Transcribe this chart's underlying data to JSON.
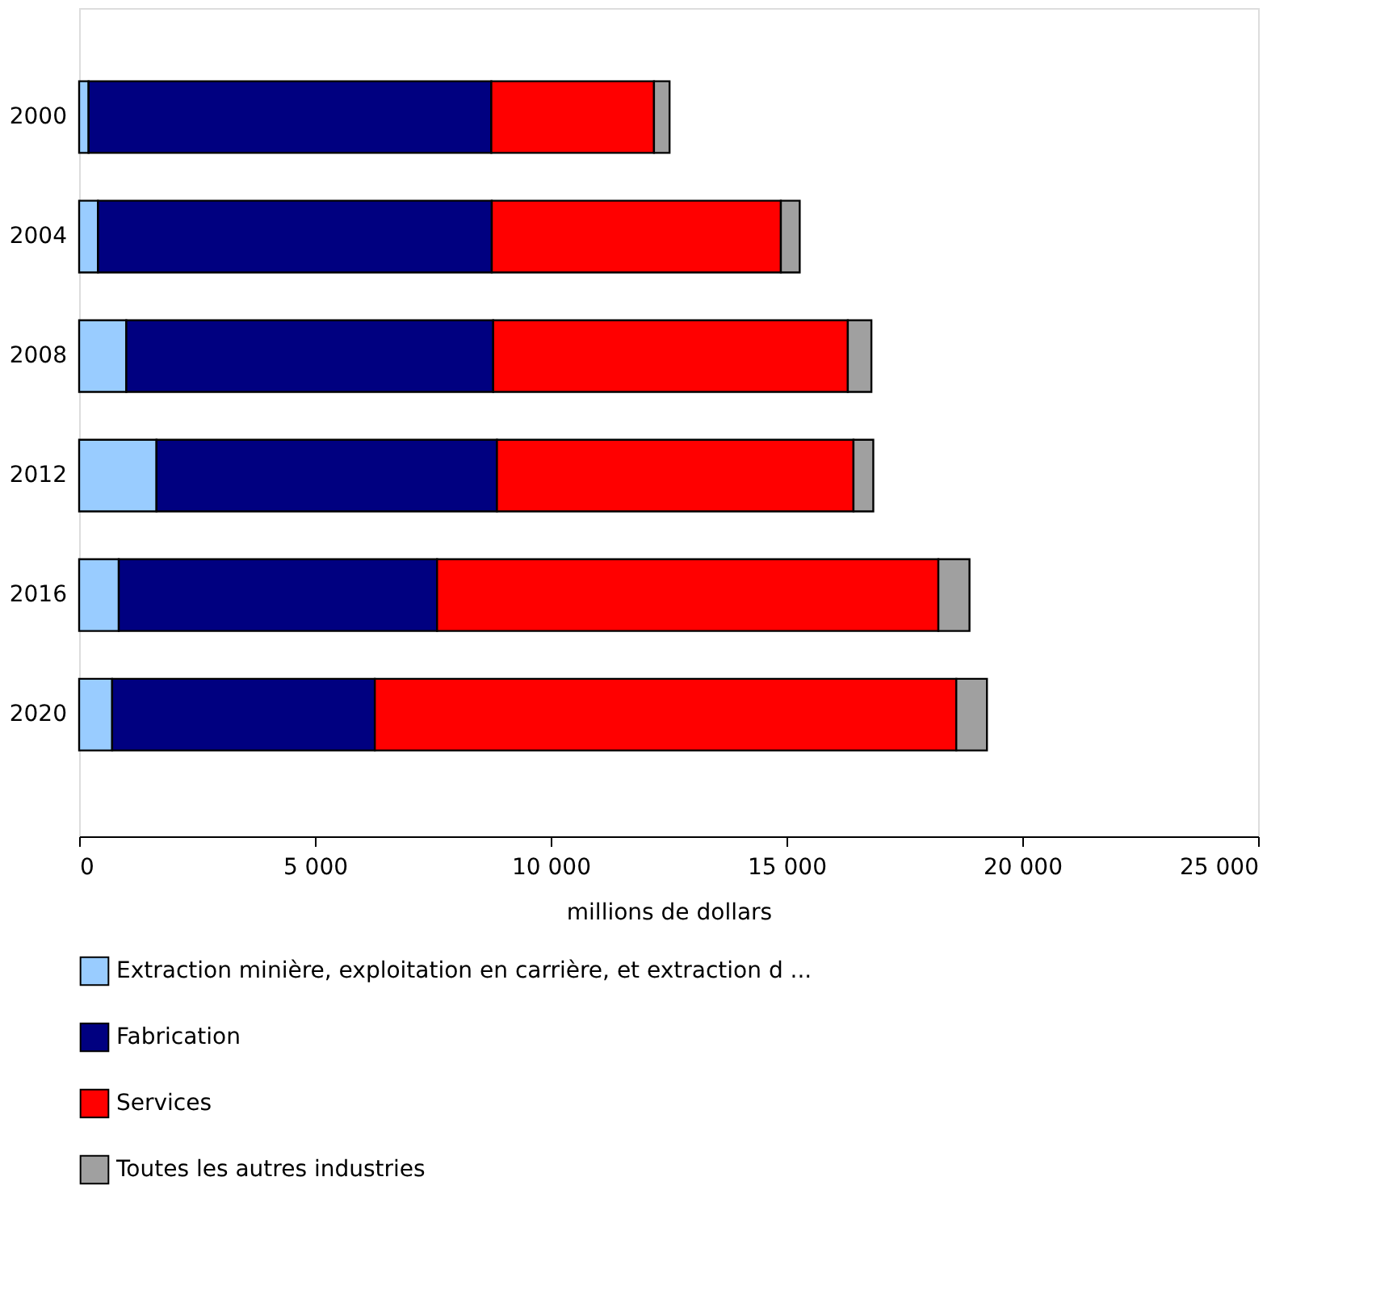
{
  "chart_data": {
    "type": "bar",
    "orientation": "horizontal",
    "stacked": true,
    "xlabel": "millions de dollars",
    "categories": [
      "2000",
      "2004",
      "2008",
      "2012",
      "2016",
      "2020"
    ],
    "series": [
      {
        "name": "Extraction minière, exploitation en carrière, et extraction d ...",
        "color": "#99ccff",
        "values": [
          200,
          400,
          1000,
          1640,
          840,
          700
        ]
      },
      {
        "name": "Fabrication",
        "color": "#000080",
        "values": [
          8540,
          8350,
          7780,
          7220,
          6750,
          5570
        ]
      },
      {
        "name": "Services",
        "color": "#ff0000",
        "values": [
          3450,
          6130,
          7520,
          7560,
          10630,
          12330
        ]
      },
      {
        "name": "Toutes les autres industries",
        "color": "#a0a0a0",
        "values": [
          330,
          400,
          500,
          420,
          660,
          650
        ]
      }
    ],
    "xlim": [
      0,
      25000
    ],
    "xticks": [
      {
        "value": 0,
        "label": "0"
      },
      {
        "value": 5000,
        "label": "5 000"
      },
      {
        "value": 10000,
        "label": "10 000"
      },
      {
        "value": 15000,
        "label": "15 000"
      },
      {
        "value": 20000,
        "label": "20 000"
      },
      {
        "value": 25000,
        "label": "25 000"
      }
    ],
    "grid": false,
    "legend": "bottom"
  }
}
